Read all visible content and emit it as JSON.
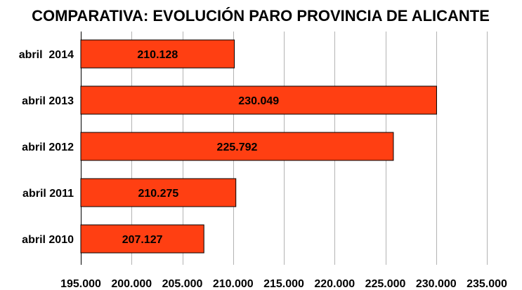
{
  "chart_data": {
    "type": "bar",
    "orientation": "horizontal",
    "title": "COMPARATIVA:  EVOLUCIÓN PARO PROVINCIA DE ALICANTE",
    "categories": [
      "abril  2014",
      "abril 2013",
      "abril 2012",
      "abril 2011",
      "abril 2010"
    ],
    "values": [
      210128,
      230049,
      225792,
      210275,
      207127
    ],
    "value_labels": [
      "210.128",
      "230.049",
      "225.792",
      "210.275",
      "207.127"
    ],
    "xlim": [
      195000,
      235000
    ],
    "x_ticks": [
      195000,
      200000,
      205000,
      210000,
      215000,
      220000,
      225000,
      230000,
      235000
    ],
    "x_tick_labels": [
      "195.000",
      "200.000",
      "205.000",
      "210.000",
      "215.000",
      "220.000",
      "225.000",
      "230.000",
      "235.000"
    ],
    "grid": true,
    "legend": "none",
    "colors": {
      "bar": "#ff3f12",
      "bar_stroke": "#000000",
      "grid": "#b3b3b3"
    }
  }
}
